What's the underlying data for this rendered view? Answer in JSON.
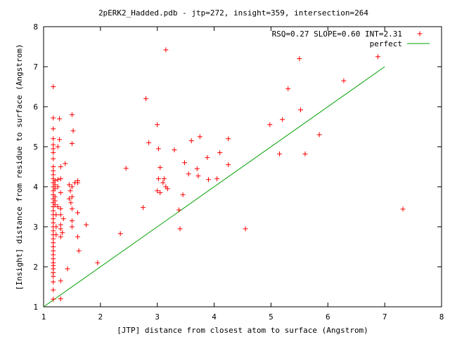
{
  "chart_data": {
    "type": "scatter",
    "title": "2pERK2_Hadded.pdb - jtp=272, insight=359, intersection=264",
    "xlabel": "[JTP] distance from closest atom to surface (Angstrom)",
    "ylabel": "[Insight] distance from residue to surface (Angstrom)",
    "xlim": [
      1,
      8
    ],
    "ylim": [
      1,
      8
    ],
    "xticks": [
      "1",
      "2",
      "3",
      "4",
      "5",
      "6",
      "7",
      "8"
    ],
    "yticks": [
      "1",
      "2",
      "3",
      "4",
      "5",
      "6",
      "7",
      "8"
    ],
    "grid": false,
    "legend_position": "top-right",
    "colors": {
      "points": "#ff0000",
      "perfect": "#00a000",
      "axes": "#000000"
    },
    "series": [
      {
        "name": "RSQ=0.27 SLOPE=0.60 INT=2.31",
        "marker": "+",
        "points": [
          [
            1.17,
            1.19
          ],
          [
            1.17,
            1.42
          ],
          [
            1.17,
            1.62
          ],
          [
            1.17,
            1.76
          ],
          [
            1.17,
            1.85
          ],
          [
            1.17,
            1.95
          ],
          [
            1.17,
            2.03
          ],
          [
            1.17,
            2.1
          ],
          [
            1.17,
            2.2
          ],
          [
            1.17,
            2.3
          ],
          [
            1.17,
            2.4
          ],
          [
            1.17,
            2.5
          ],
          [
            1.17,
            2.6
          ],
          [
            1.17,
            2.7
          ],
          [
            1.17,
            2.8
          ],
          [
            1.17,
            2.9
          ],
          [
            1.17,
            3.0
          ],
          [
            1.17,
            3.1
          ],
          [
            1.17,
            3.2
          ],
          [
            1.17,
            3.3
          ],
          [
            1.17,
            3.4
          ],
          [
            1.17,
            3.5
          ],
          [
            1.17,
            3.6
          ],
          [
            1.17,
            3.7
          ],
          [
            1.17,
            3.8
          ],
          [
            1.17,
            3.9
          ],
          [
            1.17,
            4.0
          ],
          [
            1.17,
            4.1
          ],
          [
            1.17,
            4.2
          ],
          [
            1.17,
            4.3
          ],
          [
            1.17,
            4.4
          ],
          [
            1.17,
            4.5
          ],
          [
            1.17,
            4.7
          ],
          [
            1.17,
            4.85
          ],
          [
            1.17,
            4.95
          ],
          [
            1.17,
            5.05
          ],
          [
            1.17,
            5.2
          ],
          [
            1.17,
            5.45
          ],
          [
            1.17,
            5.72
          ],
          [
            1.17,
            6.5
          ],
          [
            1.2,
            3.55
          ],
          [
            1.2,
            3.65
          ],
          [
            1.2,
            3.75
          ],
          [
            1.2,
            3.95
          ],
          [
            1.2,
            4.05
          ],
          [
            1.2,
            4.15
          ],
          [
            1.22,
            2.8
          ],
          [
            1.22,
            3.0
          ],
          [
            1.22,
            3.3
          ],
          [
            1.25,
            5.0
          ],
          [
            1.25,
            4.18
          ],
          [
            1.25,
            4.0
          ],
          [
            1.25,
            3.5
          ],
          [
            1.28,
            5.7
          ],
          [
            1.28,
            5.18
          ],
          [
            1.3,
            4.5
          ],
          [
            1.3,
            4.2
          ],
          [
            1.3,
            3.85
          ],
          [
            1.3,
            3.45
          ],
          [
            1.3,
            3.3
          ],
          [
            1.3,
            3.05
          ],
          [
            1.3,
            2.95
          ],
          [
            1.3,
            2.75
          ],
          [
            1.3,
            1.65
          ],
          [
            1.3,
            1.2
          ],
          [
            1.33,
            2.85
          ],
          [
            1.35,
            3.2
          ],
          [
            1.38,
            4.58
          ],
          [
            1.42,
            1.95
          ],
          [
            1.45,
            4.05
          ],
          [
            1.45,
            3.7
          ],
          [
            1.47,
            3.9
          ],
          [
            1.48,
            3.6
          ],
          [
            1.5,
            5.8
          ],
          [
            1.5,
            5.08
          ],
          [
            1.5,
            4.0
          ],
          [
            1.5,
            3.75
          ],
          [
            1.5,
            3.45
          ],
          [
            1.5,
            3.15
          ],
          [
            1.5,
            3.0
          ],
          [
            1.52,
            5.4
          ],
          [
            1.55,
            4.1
          ],
          [
            1.6,
            4.15
          ],
          [
            1.6,
            4.1
          ],
          [
            1.6,
            3.35
          ],
          [
            1.6,
            2.75
          ],
          [
            1.62,
            2.4
          ],
          [
            1.75,
            3.05
          ],
          [
            1.95,
            2.1
          ],
          [
            2.35,
            2.83
          ],
          [
            2.45,
            4.46
          ],
          [
            2.75,
            3.48
          ],
          [
            2.8,
            6.2
          ],
          [
            2.85,
            5.1
          ],
          [
            3.0,
            5.55
          ],
          [
            3.0,
            3.9
          ],
          [
            3.02,
            4.2
          ],
          [
            3.02,
            4.95
          ],
          [
            3.05,
            3.85
          ],
          [
            3.05,
            4.48
          ],
          [
            3.1,
            4.1
          ],
          [
            3.12,
            4.2
          ],
          [
            3.15,
            4.0
          ],
          [
            3.18,
            3.95
          ],
          [
            3.15,
            7.42
          ],
          [
            3.3,
            4.92
          ],
          [
            3.38,
            3.42
          ],
          [
            3.4,
            2.95
          ],
          [
            3.45,
            3.8
          ],
          [
            3.48,
            4.6
          ],
          [
            3.55,
            4.32
          ],
          [
            3.6,
            5.15
          ],
          [
            3.7,
            4.45
          ],
          [
            3.72,
            4.27
          ],
          [
            3.75,
            5.25
          ],
          [
            3.88,
            4.73
          ],
          [
            3.9,
            4.18
          ],
          [
            4.05,
            4.2
          ],
          [
            4.1,
            4.85
          ],
          [
            4.25,
            5.2
          ],
          [
            4.25,
            4.55
          ],
          [
            4.55,
            2.95
          ],
          [
            4.98,
            5.55
          ],
          [
            5.15,
            4.82
          ],
          [
            5.2,
            5.68
          ],
          [
            5.3,
            6.45
          ],
          [
            5.5,
            7.2
          ],
          [
            5.52,
            5.92
          ],
          [
            5.6,
            4.82
          ],
          [
            5.85,
            5.3
          ],
          [
            6.28,
            6.65
          ],
          [
            6.88,
            7.25
          ],
          [
            7.32,
            3.44
          ]
        ]
      },
      {
        "name": "perfect",
        "type": "line",
        "points": [
          [
            1,
            1
          ],
          [
            7,
            7
          ]
        ]
      }
    ]
  }
}
